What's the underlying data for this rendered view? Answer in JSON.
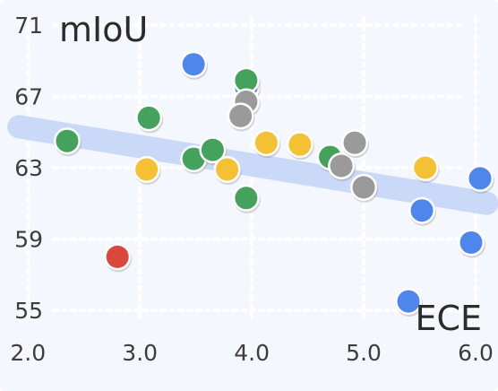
{
  "chart_data": {
    "type": "scatter",
    "xlabel": "ECE",
    "ylabel": "mIoU",
    "xlim": [
      1.75,
      6.2
    ],
    "ylim": [
      54.5,
      71.5
    ],
    "x_ticks": [
      "2.0",
      "3.0",
      "4.0",
      "5.0",
      "6.0"
    ],
    "y_ticks": [
      "55",
      "59",
      "63",
      "67",
      "71"
    ],
    "grid": true,
    "trend_line": {
      "x": [
        2.0,
        6.1
      ],
      "y": [
        65.3,
        61.0
      ],
      "color": "#c8d8f8"
    },
    "series": [
      {
        "color": "#4f86ec",
        "points": [
          [
            3.48,
            68.8
          ],
          [
            3.95,
            67.5
          ],
          [
            6.04,
            62.4
          ],
          [
            5.52,
            60.6
          ],
          [
            5.96,
            58.8
          ],
          [
            5.4,
            55.5
          ]
        ]
      },
      {
        "color": "#45a25c",
        "points": [
          [
            2.35,
            64.5
          ],
          [
            3.08,
            65.8
          ],
          [
            3.48,
            63.5
          ],
          [
            3.65,
            64.0
          ],
          [
            3.95,
            67.9
          ],
          [
            3.95,
            61.3
          ],
          [
            4.7,
            63.6
          ]
        ]
      },
      {
        "color": "#f4c034",
        "points": [
          [
            3.06,
            62.9
          ],
          [
            3.78,
            62.9
          ],
          [
            4.13,
            64.4
          ],
          [
            4.43,
            64.3
          ],
          [
            5.55,
            63.0
          ]
        ]
      },
      {
        "color": "#9a9a9a",
        "points": [
          [
            3.95,
            66.7
          ],
          [
            3.9,
            65.9
          ],
          [
            4.8,
            63.1
          ],
          [
            4.92,
            64.4
          ],
          [
            5.0,
            61.9
          ]
        ]
      },
      {
        "color": "#d9483b",
        "points": [
          [
            2.8,
            58.0
          ]
        ]
      }
    ]
  }
}
